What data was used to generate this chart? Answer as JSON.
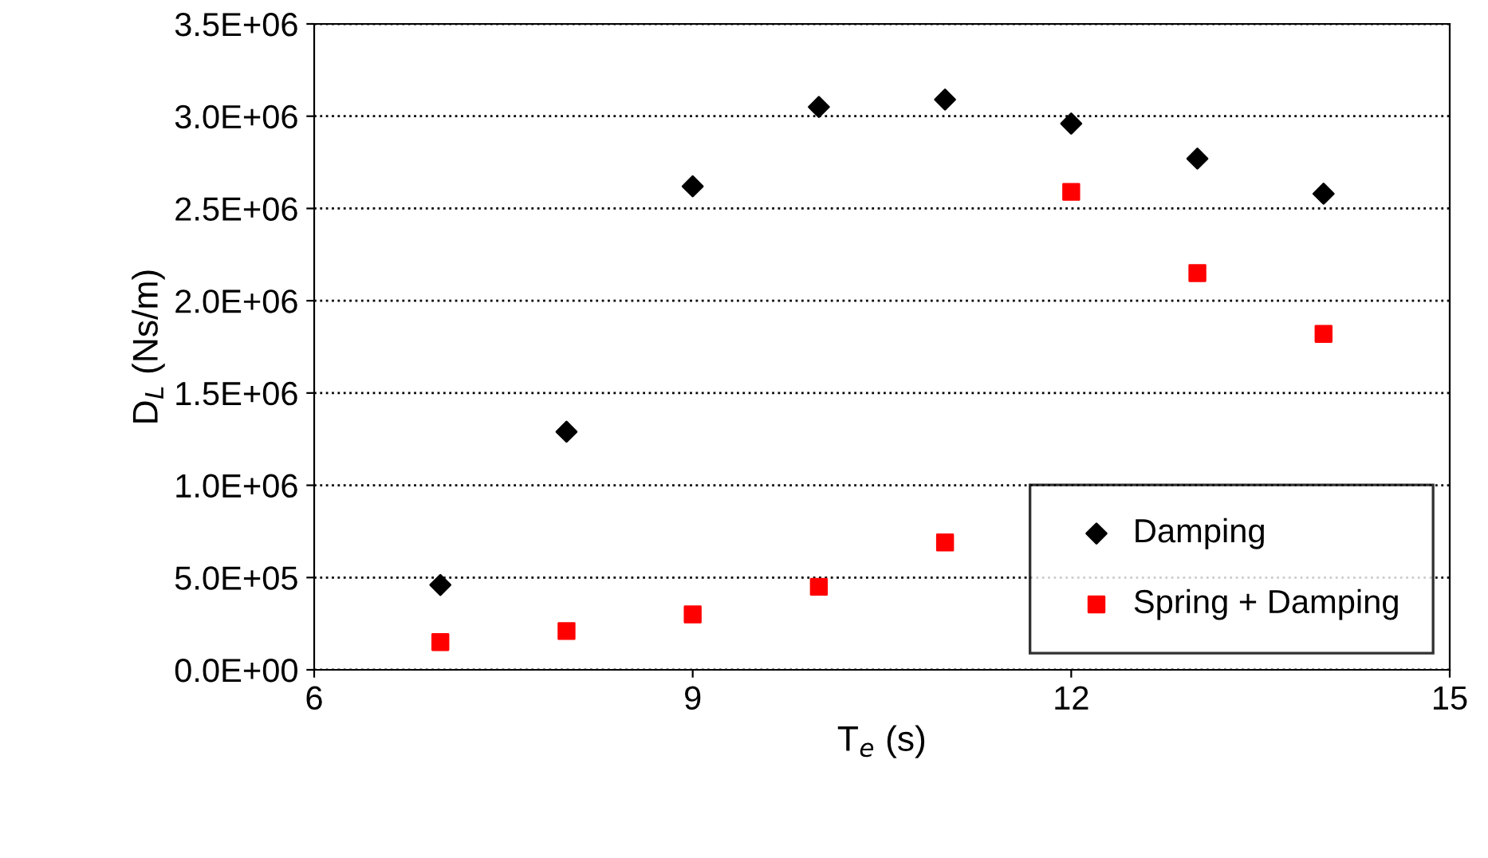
{
  "chart_data": {
    "type": "scatter",
    "xlabel": "T$_{e}$ (s)",
    "ylabel": "D$_{L}$ (Ns/m)",
    "x": [
      7,
      8,
      9,
      10,
      11,
      12,
      13,
      14
    ],
    "series": [
      {
        "name": "Damping",
        "color": "#000000",
        "marker": "diamond",
        "values": [
          460000,
          1290000,
          2620000,
          3050000,
          3090000,
          2960000,
          2770000,
          2580000
        ]
      },
      {
        "name": "Spring + Damping",
        "color": "#ff0000",
        "marker": "square",
        "values": [
          150000,
          210000,
          300000,
          450000,
          690000,
          2590000,
          2150000,
          1820000
        ]
      }
    ],
    "xlim": [
      6,
      15
    ],
    "xticks": [
      6,
      9,
      12,
      15
    ],
    "ylim": [
      0,
      3500000
    ],
    "yticks": [
      {
        "value": 0,
        "label": "0.0E+00"
      },
      {
        "value": 500000,
        "label": "5.0E+05"
      },
      {
        "value": 1000000,
        "label": "1.0E+06"
      },
      {
        "value": 1500000,
        "label": "1.5E+06"
      },
      {
        "value": 2000000,
        "label": "2.0E+06"
      },
      {
        "value": 2500000,
        "label": "2.5E+06"
      },
      {
        "value": 3000000,
        "label": "3.0E+06"
      },
      {
        "value": 3500000,
        "label": "3.5E+06"
      }
    ],
    "grid": "y",
    "legend": "bottom right"
  }
}
